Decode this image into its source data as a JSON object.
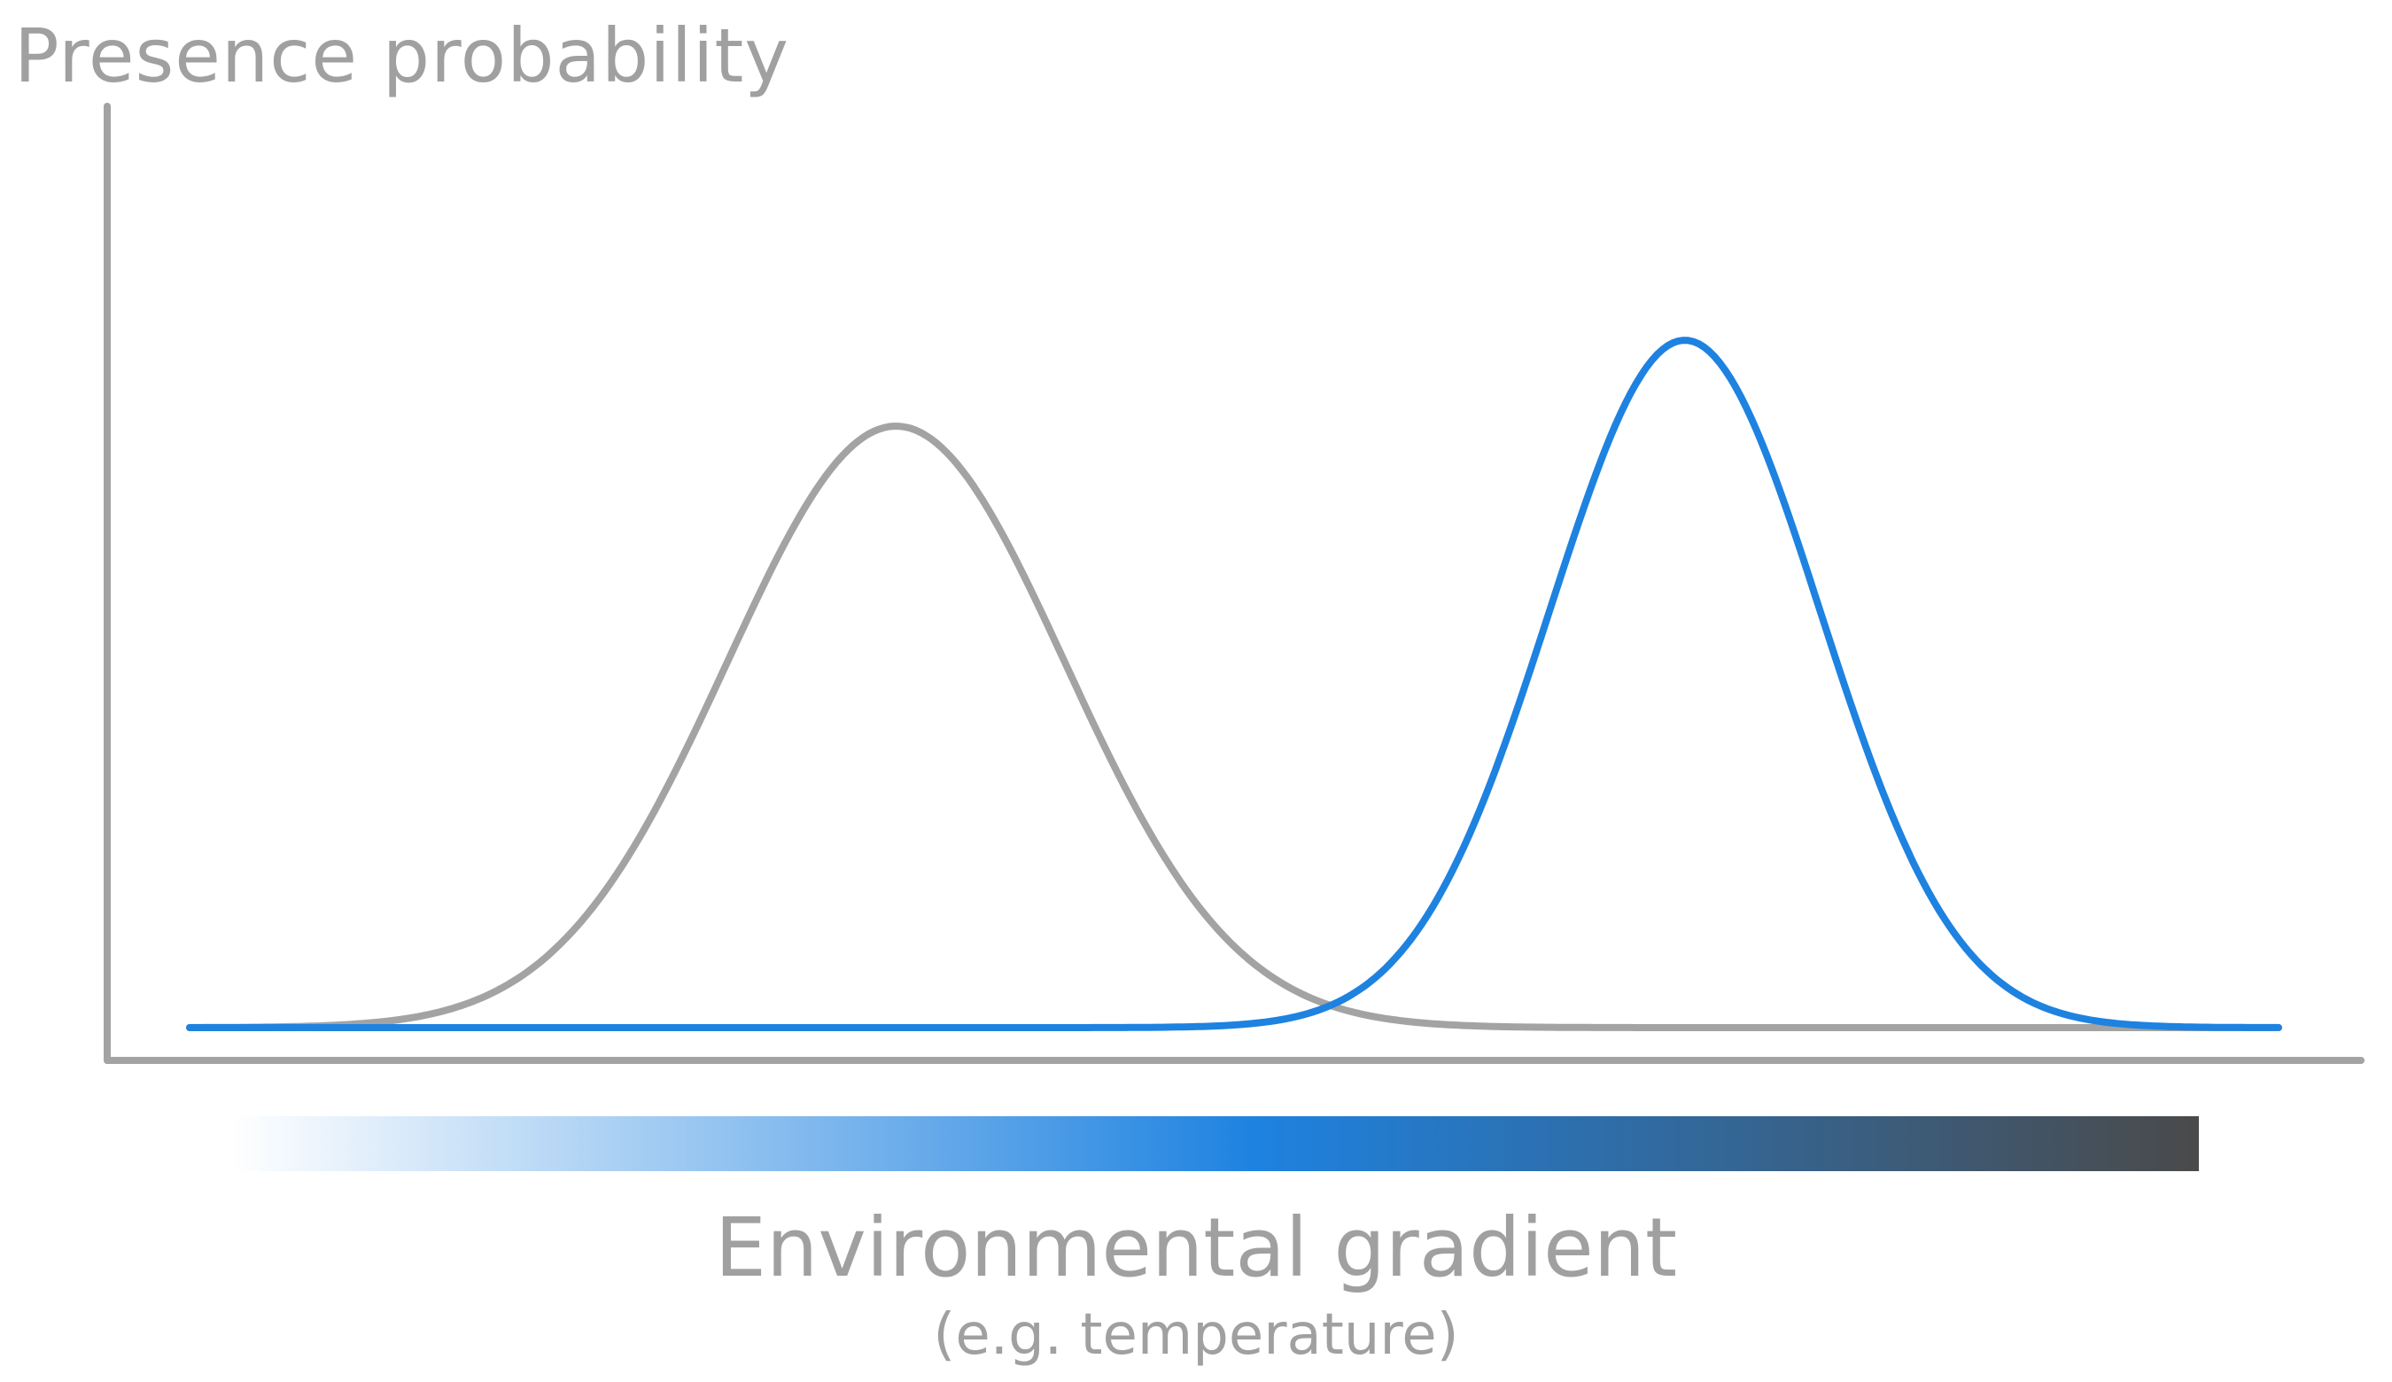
{
  "diagram": {
    "y_axis_label": "Presence probability",
    "x_axis_label": "Environmental gradient",
    "x_axis_sublabel": "(e.g. temperature)",
    "curves": [
      {
        "id": "grey-curve",
        "color": "#a3a3a3",
        "peak_position": 0.35,
        "peak_height": 0.7,
        "spread": 0.075
      },
      {
        "id": "blue-curve",
        "color": "#1e82e0",
        "peak_position": 0.7,
        "peak_height": 0.8,
        "spread": 0.06
      }
    ],
    "gradient_bar_colors": [
      "#ffffff",
      "#1e82e0",
      "#4a4a4a"
    ],
    "axis_color": "#a3a3a3"
  }
}
